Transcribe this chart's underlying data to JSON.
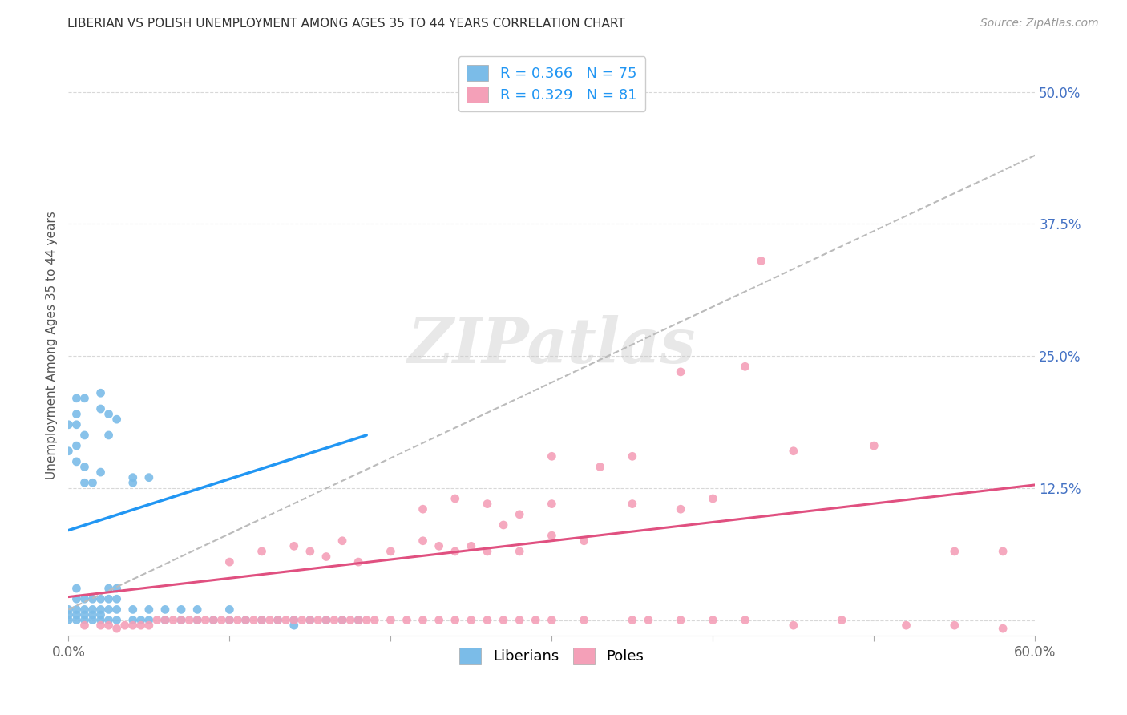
{
  "title": "LIBERIAN VS POLISH UNEMPLOYMENT AMONG AGES 35 TO 44 YEARS CORRELATION CHART",
  "source": "Source: ZipAtlas.com",
  "ylabel": "Unemployment Among Ages 35 to 44 years",
  "xlim": [
    0.0,
    0.6
  ],
  "ylim": [
    -0.015,
    0.535
  ],
  "xticks": [
    0.0,
    0.1,
    0.2,
    0.3,
    0.4,
    0.5,
    0.6
  ],
  "xticklabels": [
    "0.0%",
    "",
    "",
    "",
    "",
    "",
    "60.0%"
  ],
  "yticks": [
    0.0,
    0.125,
    0.25,
    0.375,
    0.5
  ],
  "yticklabels": [
    "",
    "12.5%",
    "25.0%",
    "37.5%",
    "50.0%"
  ],
  "liberian_color": "#7bbce8",
  "polish_color": "#f4a0b8",
  "liberian_R": 0.366,
  "liberian_N": 75,
  "polish_R": 0.329,
  "polish_N": 81,
  "background_color": "#ffffff",
  "grid_color": "#d8d8d8",
  "watermark_text": "ZIPatlas",
  "liberian_solid_line": {
    "x0": 0.0,
    "y0": 0.085,
    "x1": 0.185,
    "y1": 0.175
  },
  "liberian_dashed_line": {
    "x0": 0.0,
    "y0": 0.01,
    "x1": 0.6,
    "y1": 0.44
  },
  "polish_line": {
    "x0": 0.0,
    "y0": 0.022,
    "x1": 0.6,
    "y1": 0.128
  },
  "liberian_scatter": [
    [
      0.0,
      0.0
    ],
    [
      0.0,
      0.005
    ],
    [
      0.0,
      0.01
    ],
    [
      0.0,
      0.16
    ],
    [
      0.0,
      0.185
    ],
    [
      0.005,
      0.0
    ],
    [
      0.005,
      0.005
    ],
    [
      0.005,
      0.01
    ],
    [
      0.005,
      0.02
    ],
    [
      0.005,
      0.03
    ],
    [
      0.005,
      0.15
    ],
    [
      0.005,
      0.165
    ],
    [
      0.005,
      0.185
    ],
    [
      0.005,
      0.195
    ],
    [
      0.005,
      0.21
    ],
    [
      0.01,
      0.0
    ],
    [
      0.01,
      0.005
    ],
    [
      0.01,
      0.01
    ],
    [
      0.01,
      0.02
    ],
    [
      0.01,
      0.13
    ],
    [
      0.01,
      0.145
    ],
    [
      0.01,
      0.175
    ],
    [
      0.01,
      0.21
    ],
    [
      0.015,
      0.0
    ],
    [
      0.015,
      0.005
    ],
    [
      0.015,
      0.01
    ],
    [
      0.015,
      0.02
    ],
    [
      0.015,
      0.13
    ],
    [
      0.02,
      0.0
    ],
    [
      0.02,
      0.005
    ],
    [
      0.02,
      0.01
    ],
    [
      0.02,
      0.02
    ],
    [
      0.02,
      0.14
    ],
    [
      0.02,
      0.2
    ],
    [
      0.02,
      0.215
    ],
    [
      0.025,
      0.0
    ],
    [
      0.025,
      0.01
    ],
    [
      0.025,
      0.02
    ],
    [
      0.025,
      0.03
    ],
    [
      0.025,
      0.175
    ],
    [
      0.025,
      0.195
    ],
    [
      0.03,
      0.0
    ],
    [
      0.03,
      0.01
    ],
    [
      0.03,
      0.02
    ],
    [
      0.03,
      0.03
    ],
    [
      0.03,
      0.19
    ],
    [
      0.04,
      0.0
    ],
    [
      0.04,
      0.01
    ],
    [
      0.04,
      0.13
    ],
    [
      0.04,
      0.135
    ],
    [
      0.045,
      0.0
    ],
    [
      0.05,
      0.0
    ],
    [
      0.05,
      0.01
    ],
    [
      0.05,
      0.135
    ],
    [
      0.06,
      0.0
    ],
    [
      0.06,
      0.01
    ],
    [
      0.07,
      0.0
    ],
    [
      0.07,
      0.01
    ],
    [
      0.08,
      0.0
    ],
    [
      0.08,
      0.01
    ],
    [
      0.09,
      0.0
    ],
    [
      0.1,
      0.0
    ],
    [
      0.1,
      0.01
    ],
    [
      0.11,
      0.0
    ],
    [
      0.12,
      0.0
    ],
    [
      0.13,
      0.0
    ],
    [
      0.14,
      0.0
    ],
    [
      0.14,
      -0.005
    ],
    [
      0.15,
      0.0
    ],
    [
      0.16,
      0.0
    ],
    [
      0.17,
      0.0
    ],
    [
      0.18,
      0.0
    ]
  ],
  "polish_scatter": [
    [
      0.01,
      -0.005
    ],
    [
      0.02,
      -0.005
    ],
    [
      0.025,
      -0.005
    ],
    [
      0.03,
      -0.008
    ],
    [
      0.035,
      -0.005
    ],
    [
      0.04,
      -0.005
    ],
    [
      0.045,
      -0.005
    ],
    [
      0.05,
      -0.005
    ],
    [
      0.055,
      0.0
    ],
    [
      0.06,
      0.0
    ],
    [
      0.065,
      0.0
    ],
    [
      0.07,
      0.0
    ],
    [
      0.075,
      0.0
    ],
    [
      0.08,
      0.0
    ],
    [
      0.085,
      0.0
    ],
    [
      0.09,
      0.0
    ],
    [
      0.095,
      0.0
    ],
    [
      0.1,
      0.0
    ],
    [
      0.105,
      0.0
    ],
    [
      0.11,
      0.0
    ],
    [
      0.115,
      0.0
    ],
    [
      0.12,
      0.0
    ],
    [
      0.125,
      0.0
    ],
    [
      0.13,
      0.0
    ],
    [
      0.135,
      0.0
    ],
    [
      0.14,
      0.0
    ],
    [
      0.145,
      0.0
    ],
    [
      0.15,
      0.0
    ],
    [
      0.155,
      0.0
    ],
    [
      0.16,
      0.0
    ],
    [
      0.165,
      0.0
    ],
    [
      0.17,
      0.0
    ],
    [
      0.175,
      0.0
    ],
    [
      0.18,
      0.0
    ],
    [
      0.185,
      0.0
    ],
    [
      0.19,
      0.0
    ],
    [
      0.2,
      0.0
    ],
    [
      0.21,
      0.0
    ],
    [
      0.22,
      0.0
    ],
    [
      0.23,
      0.0
    ],
    [
      0.24,
      0.0
    ],
    [
      0.25,
      0.0
    ],
    [
      0.26,
      0.0
    ],
    [
      0.27,
      0.0
    ],
    [
      0.28,
      0.0
    ],
    [
      0.29,
      0.0
    ],
    [
      0.3,
      0.0
    ],
    [
      0.32,
      0.0
    ],
    [
      0.35,
      0.0
    ],
    [
      0.36,
      0.0
    ],
    [
      0.38,
      0.0
    ],
    [
      0.4,
      0.0
    ],
    [
      0.42,
      0.0
    ],
    [
      0.45,
      -0.005
    ],
    [
      0.48,
      0.0
    ],
    [
      0.52,
      -0.005
    ],
    [
      0.55,
      -0.005
    ],
    [
      0.58,
      -0.008
    ],
    [
      0.1,
      0.055
    ],
    [
      0.12,
      0.065
    ],
    [
      0.14,
      0.07
    ],
    [
      0.15,
      0.065
    ],
    [
      0.16,
      0.06
    ],
    [
      0.17,
      0.075
    ],
    [
      0.18,
      0.055
    ],
    [
      0.2,
      0.065
    ],
    [
      0.22,
      0.075
    ],
    [
      0.23,
      0.07
    ],
    [
      0.24,
      0.065
    ],
    [
      0.25,
      0.07
    ],
    [
      0.26,
      0.065
    ],
    [
      0.27,
      0.09
    ],
    [
      0.28,
      0.065
    ],
    [
      0.3,
      0.08
    ],
    [
      0.32,
      0.075
    ],
    [
      0.22,
      0.105
    ],
    [
      0.24,
      0.115
    ],
    [
      0.26,
      0.11
    ],
    [
      0.28,
      0.1
    ],
    [
      0.3,
      0.11
    ],
    [
      0.33,
      0.145
    ],
    [
      0.35,
      0.11
    ],
    [
      0.38,
      0.105
    ],
    [
      0.4,
      0.115
    ],
    [
      0.3,
      0.155
    ],
    [
      0.35,
      0.155
    ],
    [
      0.38,
      0.235
    ],
    [
      0.42,
      0.24
    ],
    [
      0.43,
      0.34
    ],
    [
      0.45,
      0.16
    ],
    [
      0.5,
      0.165
    ],
    [
      0.55,
      0.065
    ],
    [
      0.58,
      0.065
    ]
  ]
}
